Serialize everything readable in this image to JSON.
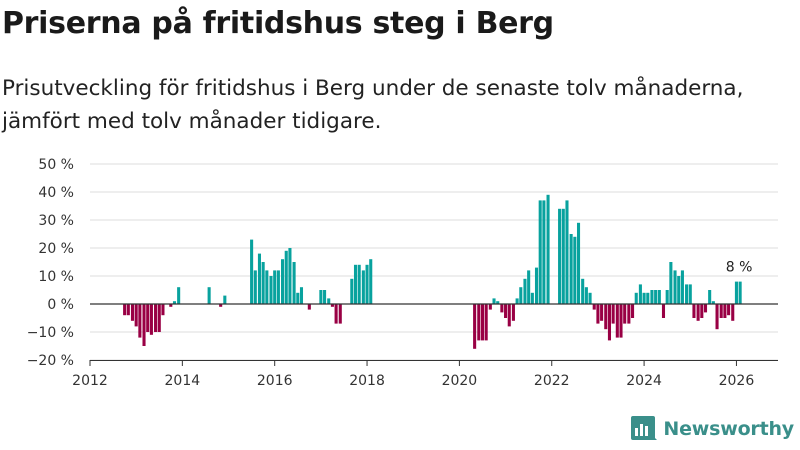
{
  "header": {
    "title": "Priserna på fritidshus steg i Berg",
    "subtitle": "Prisutveckling för fritidshus i Berg under de senaste tolv månaderna, jämfört med tolv månader tidigare."
  },
  "brand": {
    "name": "Newsworthy",
    "icon": "newsworthy-logo-icon",
    "color": "#3a8f8a"
  },
  "colors": {
    "positive": "#08a29e",
    "negative": "#990044",
    "grid": "#dddddd",
    "zero_line": "#333333"
  },
  "chart_data": {
    "type": "bar",
    "title": "Priserna på fritidshus steg i Berg",
    "ylabel": "",
    "xlabel": "",
    "ylim": [
      -20,
      50
    ],
    "xlim": [
      2012,
      2026.9
    ],
    "y_ticks": [
      -20,
      -10,
      0,
      10,
      20,
      30,
      40,
      50
    ],
    "y_tick_labels": [
      "−20 %",
      "−10 %",
      "0 %",
      "10 %",
      "20 %",
      "30 %",
      "40 %",
      "50 %"
    ],
    "x_ticks": [
      2012,
      2014,
      2016,
      2018,
      2020,
      2022,
      2024,
      2026
    ],
    "x_tick_labels": [
      "2012",
      "2014",
      "2016",
      "2018",
      "2020",
      "2022",
      "2024",
      "2026"
    ],
    "grid": "horizontal",
    "annotation": {
      "text": "8 %",
      "x": 2026.08,
      "y": 8
    },
    "x": [
      2012.75,
      2012.83,
      2012.92,
      2013.0,
      2013.08,
      2013.17,
      2013.25,
      2013.33,
      2013.42,
      2013.5,
      2013.58,
      2013.75,
      2013.83,
      2013.92,
      2014.58,
      2014.83,
      2014.92,
      2015.5,
      2015.58,
      2015.67,
      2015.75,
      2015.83,
      2015.92,
      2016.0,
      2016.08,
      2016.17,
      2016.25,
      2016.33,
      2016.42,
      2016.5,
      2016.58,
      2016.75,
      2017.0,
      2017.08,
      2017.17,
      2017.25,
      2017.33,
      2017.42,
      2017.67,
      2017.75,
      2017.83,
      2017.92,
      2018.0,
      2018.08,
      2020.33,
      2020.42,
      2020.5,
      2020.58,
      2020.67,
      2020.75,
      2020.83,
      2020.92,
      2021.0,
      2021.08,
      2021.17,
      2021.25,
      2021.33,
      2021.42,
      2021.5,
      2021.58,
      2021.67,
      2021.75,
      2021.83,
      2021.92,
      2022.17,
      2022.25,
      2022.33,
      2022.42,
      2022.5,
      2022.58,
      2022.67,
      2022.75,
      2022.83,
      2022.92,
      2023.0,
      2023.08,
      2023.17,
      2023.25,
      2023.33,
      2023.42,
      2023.5,
      2023.58,
      2023.67,
      2023.75,
      2023.83,
      2023.92,
      2024.0,
      2024.08,
      2024.17,
      2024.25,
      2024.33,
      2024.42,
      2024.5,
      2024.58,
      2024.67,
      2024.75,
      2024.83,
      2024.92,
      2025.0,
      2025.08,
      2025.17,
      2025.25,
      2025.33,
      2025.42,
      2025.5,
      2025.58,
      2025.67,
      2025.75,
      2025.83,
      2025.92,
      2026.0,
      2026.08
    ],
    "values": [
      -4,
      -4,
      -6,
      -8,
      -12,
      -15,
      -10,
      -11,
      -10,
      -10,
      -4,
      -1,
      1,
      6,
      6,
      -1,
      3,
      23,
      12,
      18,
      15,
      12,
      10,
      12,
      12,
      16,
      19,
      20,
      15,
      4,
      6,
      -2,
      5,
      5,
      2,
      -1,
      -7,
      -7,
      9,
      14,
      14,
      12,
      14,
      16,
      -16,
      -13,
      -13,
      -13,
      -2,
      2,
      1,
      -3,
      -5,
      -8,
      -6,
      2,
      6,
      9,
      12,
      4,
      13,
      37,
      37,
      39,
      34,
      34,
      37,
      25,
      24,
      29,
      9,
      6,
      4,
      -2,
      -7,
      -6,
      -9,
      -13,
      -7,
      -12,
      -12,
      -7,
      -7,
      -5,
      4,
      7,
      4,
      4,
      5,
      5,
      5,
      -5,
      5,
      15,
      12,
      10,
      12,
      7,
      7,
      -5,
      -6,
      -5,
      -3,
      5,
      1,
      -9,
      -5,
      -5,
      -4,
      -6,
      8,
      8
    ]
  }
}
